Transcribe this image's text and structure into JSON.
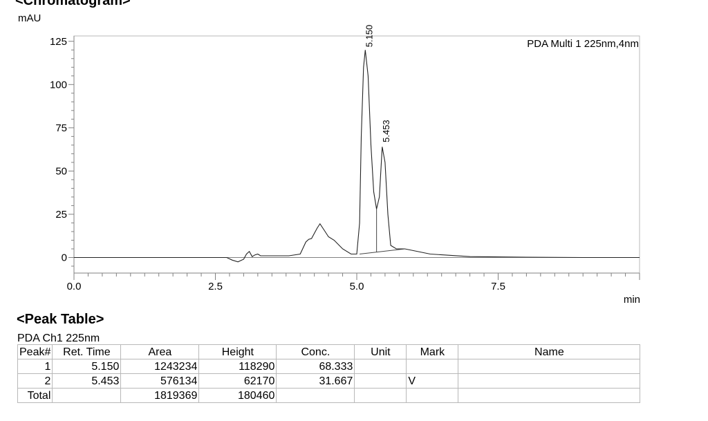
{
  "header": {
    "title_partial": "<Chromatogram>",
    "y_unit": "mAU",
    "x_unit": "min",
    "detector_label": "PDA Multi 1 225nm,4nm"
  },
  "chart_data": {
    "type": "line",
    "xlim": [
      0,
      10
    ],
    "ylim": [
      -8,
      127
    ],
    "xticks": [
      0,
      2.5,
      5.0,
      7.5
    ],
    "xtick_labels": [
      "0.0",
      "2.5",
      "5.0",
      "7.5"
    ],
    "yticks": [
      0,
      25,
      50,
      75,
      100,
      125
    ],
    "ytick_labels": [
      "0",
      "25",
      "50",
      "75",
      "100",
      "125"
    ],
    "xlabel": "min",
    "ylabel": "mAU",
    "grid": false,
    "annotation": "PDA Multi 1 225nm,4nm",
    "series": [
      {
        "x": [
          0.0,
          2.7,
          2.8,
          2.9,
          3.0,
          3.05,
          3.1,
          3.15,
          3.2,
          3.25,
          3.3,
          3.5,
          3.8,
          4.0,
          4.1,
          4.15,
          4.2,
          4.3,
          4.35,
          4.42,
          4.5,
          4.6,
          4.75,
          4.9,
          5.0,
          5.05,
          5.08,
          5.12,
          5.15,
          5.2,
          5.25,
          5.3,
          5.35,
          5.4,
          5.45,
          5.5,
          5.55,
          5.6,
          5.7,
          5.85,
          6.0,
          6.3,
          7.0,
          8.0,
          9.0,
          10.0
        ],
        "y": [
          0,
          0,
          -1.5,
          -2.5,
          -1,
          2,
          3.5,
          0.5,
          1.5,
          2,
          1,
          1,
          1,
          2,
          9,
          10.5,
          11,
          17,
          19.5,
          16,
          12,
          10,
          5,
          2,
          2,
          20,
          70,
          110,
          120,
          105,
          65,
          38,
          28,
          35,
          64,
          55,
          25,
          7,
          5,
          5,
          4,
          2,
          0.5,
          0.2,
          0,
          0
        ]
      }
    ],
    "peaks": [
      {
        "label": "5.150",
        "x": 5.15,
        "y": 120
      },
      {
        "label": "5.453",
        "x": 5.453,
        "y": 65
      }
    ],
    "peak_divider": {
      "x": 5.35,
      "y_base": 3,
      "y_top": 28
    },
    "baseline": {
      "x": [
        5.05,
        5.85
      ],
      "y": [
        2,
        5
      ]
    }
  },
  "peak_table": {
    "title": "<Peak Table>",
    "channel": "PDA Ch1 225nm",
    "columns": [
      "Peak#",
      "Ret. Time",
      "Area",
      "Height",
      "Conc.",
      "Unit",
      "Mark",
      "Name"
    ],
    "rows": [
      {
        "peak": "1",
        "ret_time": "5.150",
        "area": "1243234",
        "height": "118290",
        "conc": "68.333",
        "unit": "",
        "mark": "",
        "name": ""
      },
      {
        "peak": "2",
        "ret_time": "5.453",
        "area": "576134",
        "height": "62170",
        "conc": "31.667",
        "unit": "",
        "mark": "V",
        "name": ""
      }
    ],
    "total": {
      "label": "Total",
      "area": "1819369",
      "height": "180460"
    }
  }
}
